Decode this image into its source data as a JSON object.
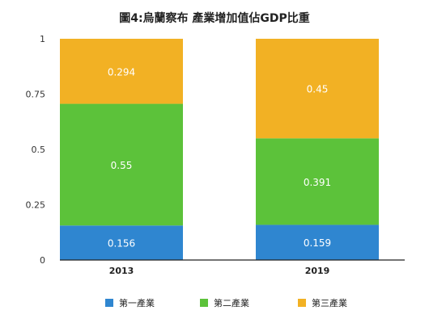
{
  "chart_data": {
    "type": "bar",
    "stacked": true,
    "title": "圖4:烏蘭察布 產業增加值佔GDP比重",
    "categories": [
      "2013",
      "2019"
    ],
    "series": [
      {
        "name": "第一產業",
        "values": [
          0.156,
          0.159
        ],
        "labels": [
          "0.156",
          "0.159"
        ],
        "color": "#2f86d0"
      },
      {
        "name": "第二產業",
        "values": [
          0.55,
          0.391
        ],
        "labels": [
          "0.55",
          "0.391"
        ],
        "color": "#5cc23a"
      },
      {
        "name": "第三產業",
        "values": [
          0.294,
          0.45
        ],
        "labels": [
          "0.294",
          "0.45"
        ],
        "color": "#f2b124"
      }
    ],
    "ylim": [
      0,
      1
    ],
    "yticks": [
      "0",
      "0.25",
      "0.5",
      "0.75",
      "1"
    ],
    "grid": false,
    "legend_position": "bottom"
  }
}
